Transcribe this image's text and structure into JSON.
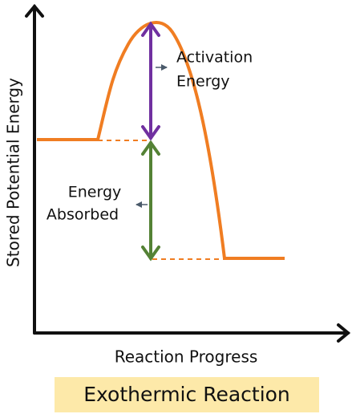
{
  "y_axis_label": "Stored Potential Energy",
  "x_axis_label": "Reaction Progress",
  "title": "Exothermic Reaction",
  "activation_label": [
    "Activation",
    "Energy"
  ],
  "absorbed_label": [
    "Energy",
    "Absorbed"
  ]
}
